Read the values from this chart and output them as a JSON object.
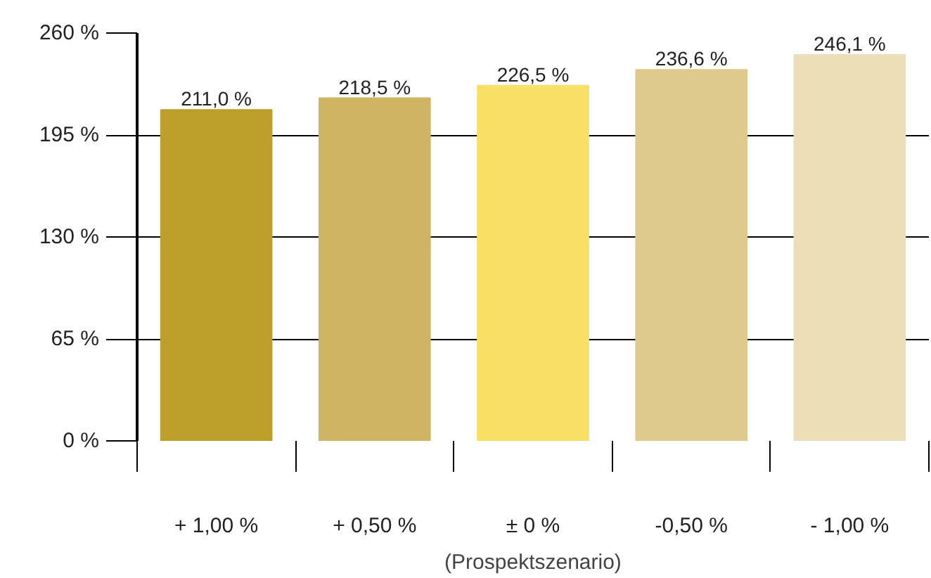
{
  "chart_data": {
    "type": "bar",
    "xlabel": "(Prospektszenario)",
    "categories": [
      "+ 1,00 %",
      "+ 0,50 %",
      "± 0 %",
      "-0,50 %",
      "- 1,00 %"
    ],
    "values": [
      211.0,
      218.5,
      226.5,
      236.6,
      246.1
    ],
    "value_labels": [
      "211,0 %",
      "218,5 %",
      "226,5 %",
      "236,6 %",
      "246,1 %"
    ],
    "colors": [
      "#bd9f2b",
      "#cfb563",
      "#f8df65",
      "#dfca8d",
      "#ecdfb8"
    ],
    "ylim": [
      0,
      260
    ],
    "yticks": [
      {
        "value": 0,
        "label": "0 %"
      },
      {
        "value": 65,
        "label": "65 %"
      },
      {
        "value": 130,
        "label": "130 %"
      },
      {
        "value": 195,
        "label": "195 %"
      },
      {
        "value": 260,
        "label": "260 %"
      }
    ],
    "grid": "y"
  }
}
